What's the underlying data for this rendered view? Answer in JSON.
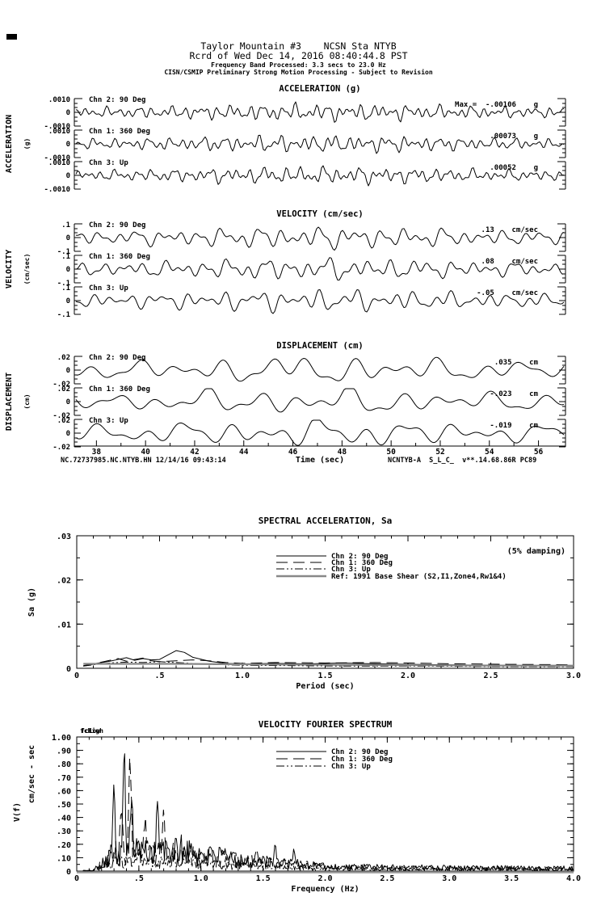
{
  "header": {
    "line1": "Taylor Mountain #3    NCSN Sta NTYB",
    "line2": "Rcrd of Wed Dec 14, 2016 08:40:44.8 PST",
    "line3": "Frequency Band Processed: 3.3 secs to 23.0 Hz",
    "line4": "CISN/CSMIP Preliminary Strong Motion Processing - Subject to Revision"
  },
  "colors": {
    "ink": "#000000",
    "paper": "#ffffff",
    "ref_gray": "#888888",
    "baseline_gray": "#999999"
  },
  "chart_data": [
    {
      "type": "line",
      "panel": "acceleration",
      "title": "ACCELERATION (g)",
      "ylabel": "ACCELERATION",
      "ylabel_units": "(g)",
      "xlim_sec": [
        37,
        57
      ],
      "traces": [
        {
          "label": "Chn 2: 90 Deg",
          "ytick_top": ".0010",
          "ytick_mid": "0",
          "ytick_bot": "-.0010",
          "max_label": "Max =  -.00106    g",
          "max_value": -0.00106,
          "units": "g"
        },
        {
          "label": "Chn 1: 360 Deg",
          "ytick_top": ".0010",
          "ytick_mid": "0",
          "ytick_bot": "-.0010",
          "max_label": ".00073    g",
          "max_value": 0.00073,
          "units": "g"
        },
        {
          "label": "Chn 3: Up",
          "ytick_top": ".0010",
          "ytick_mid": "0",
          "ytick_bot": "-.0010",
          "max_label": ".00052    g",
          "max_value": 0.00052,
          "units": "g"
        }
      ]
    },
    {
      "type": "line",
      "panel": "velocity",
      "title": "VELOCITY (cm/sec)",
      "ylabel": "VELOCITY",
      "ylabel_units": "(cm/sec)",
      "xlim_sec": [
        37,
        57
      ],
      "traces": [
        {
          "label": "Chn 2: 90 Deg",
          "ytick_top": ".1",
          "ytick_mid": "0",
          "ytick_bot": "-.1",
          "max_label": ".13    cm/sec",
          "max_value": 0.13,
          "units": "cm/sec"
        },
        {
          "label": "Chn 1: 360 Deg",
          "ytick_top": ".1",
          "ytick_mid": "0",
          "ytick_bot": "-.1",
          "max_label": ".08    cm/sec",
          "max_value": 0.08,
          "units": "cm/sec"
        },
        {
          "label": "Chn 3: Up",
          "ytick_top": ".1",
          "ytick_mid": "0",
          "ytick_bot": "-.1",
          "max_label": "-.05    cm/sec",
          "max_value": -0.05,
          "units": "cm/sec"
        }
      ]
    },
    {
      "type": "line",
      "panel": "displacement",
      "title": "DISPLACEMENT (cm)",
      "ylabel": "DISPLACEMENT",
      "ylabel_units": "(cm)",
      "xlim_sec": [
        37,
        57
      ],
      "xticks": [
        38,
        40,
        42,
        44,
        46,
        48,
        50,
        52,
        54,
        56
      ],
      "xlabel": "Time (sec)",
      "footer_left": "NC.72737985.NC.NTYB.HN 12/14/16 09:43:14",
      "footer_right": "NCNTYB-A  S_L_C_  v**.14.68.86R PC89",
      "traces": [
        {
          "label": "Chn 2: 90 Deg",
          "ytick_top": ".02",
          "ytick_mid": "0",
          "ytick_bot": "-.02",
          "max_label": ".035    cm",
          "max_value": 0.035,
          "units": "cm"
        },
        {
          "label": "Chn 1: 360 Deg",
          "ytick_top": ".02",
          "ytick_mid": "0",
          "ytick_bot": "-.02",
          "max_label": "-.023    cm",
          "max_value": -0.023,
          "units": "cm"
        },
        {
          "label": "Chn 3: Up",
          "ytick_top": ".02",
          "ytick_mid": "0",
          "ytick_bot": "-.02",
          "max_label": "-.019    cm",
          "max_value": -0.019,
          "units": "cm"
        }
      ]
    },
    {
      "type": "line",
      "panel": "spectral_acceleration",
      "title": "SPECTRAL ACCELERATION, Sa",
      "damping_note": "(5% damping)",
      "xlabel": "Period (sec)",
      "ylabel": "Sa (g)",
      "xlim": [
        0,
        3.0
      ],
      "ylim": [
        0,
        0.03
      ],
      "xtick_labels": [
        "0",
        ".5",
        "1.0",
        "1.5",
        "2.0",
        "2.5",
        "3.0"
      ],
      "xtick_values": [
        0,
        0.5,
        1.0,
        1.5,
        2.0,
        2.5,
        3.0
      ],
      "ytick_labels": [
        "0",
        ".01",
        ".02",
        ".03"
      ],
      "ytick_values": [
        0,
        0.01,
        0.02,
        0.03
      ],
      "legend": [
        {
          "label": "Chn 2: 90 Deg",
          "style": "solid"
        },
        {
          "label": "Chn 1: 360 Deg",
          "style": "long-dash"
        },
        {
          "label": "Chn 3: Up",
          "style": "dash-dot"
        },
        {
          "label": "Ref: 1991 Base Shear (S2,I1,Zone4,Rw1&4)",
          "style": "ref-solid"
        }
      ],
      "series": [
        {
          "name": "Chn 2: 90 Deg",
          "style": "solid",
          "points": [
            [
              0.04,
              0.0006
            ],
            [
              0.1,
              0.001
            ],
            [
              0.15,
              0.0013
            ],
            [
              0.2,
              0.0016
            ],
            [
              0.25,
              0.002
            ],
            [
              0.3,
              0.0024
            ],
            [
              0.35,
              0.0018
            ],
            [
              0.4,
              0.0022
            ],
            [
              0.45,
              0.0019
            ],
            [
              0.5,
              0.002
            ],
            [
              0.55,
              0.003
            ],
            [
              0.6,
              0.004
            ],
            [
              0.65,
              0.0036
            ],
            [
              0.7,
              0.0025
            ],
            [
              0.8,
              0.0016
            ],
            [
              0.9,
              0.0011
            ],
            [
              1.0,
              0.001
            ],
            [
              1.2,
              0.0011
            ],
            [
              1.4,
              0.001
            ],
            [
              1.6,
              0.0012
            ],
            [
              1.8,
              0.001
            ],
            [
              2.0,
              0.0009
            ],
            [
              2.2,
              0.0008
            ],
            [
              2.5,
              0.0007
            ],
            [
              2.8,
              0.0006
            ],
            [
              3.0,
              0.0006
            ]
          ]
        },
        {
          "name": "Chn 1: 360 Deg",
          "style": "long-dash",
          "points": [
            [
              0.04,
              0.0005
            ],
            [
              0.1,
              0.0009
            ],
            [
              0.15,
              0.0014
            ],
            [
              0.2,
              0.0018
            ],
            [
              0.25,
              0.0022
            ],
            [
              0.3,
              0.0016
            ],
            [
              0.35,
              0.002
            ],
            [
              0.4,
              0.0023
            ],
            [
              0.45,
              0.0017
            ],
            [
              0.5,
              0.0015
            ],
            [
              0.6,
              0.0017
            ],
            [
              0.7,
              0.0019
            ],
            [
              0.8,
              0.0017
            ],
            [
              0.9,
              0.0013
            ],
            [
              1.0,
              0.0011
            ],
            [
              1.2,
              0.0013
            ],
            [
              1.5,
              0.0012
            ],
            [
              1.8,
              0.0013
            ],
            [
              2.0,
              0.0012
            ],
            [
              2.3,
              0.001
            ],
            [
              2.6,
              0.0009
            ],
            [
              3.0,
              0.0008
            ]
          ]
        },
        {
          "name": "Chn 3: Up",
          "style": "dash-dot",
          "points": [
            [
              0.04,
              0.0005
            ],
            [
              0.1,
              0.0008
            ],
            [
              0.2,
              0.0012
            ],
            [
              0.3,
              0.0014
            ],
            [
              0.4,
              0.0013
            ],
            [
              0.5,
              0.0015
            ],
            [
              0.6,
              0.0013
            ],
            [
              0.7,
              0.0011
            ],
            [
              0.8,
              0.0009
            ],
            [
              1.0,
              0.0007
            ],
            [
              1.3,
              0.0006
            ],
            [
              1.6,
              0.0005
            ],
            [
              2.0,
              0.0005
            ],
            [
              2.5,
              0.0004
            ],
            [
              3.0,
              0.0004
            ]
          ]
        },
        {
          "name": "Ref: 1991 Base Shear",
          "style": "ref-solid",
          "points": [
            [
              0.04,
              0.001
            ],
            [
              0.3,
              0.001
            ],
            [
              0.6,
              0.001
            ],
            [
              1.0,
              0.0009
            ],
            [
              1.5,
              0.0008
            ],
            [
              2.0,
              0.0007
            ],
            [
              2.5,
              0.0006
            ],
            [
              3.0,
              0.0006
            ]
          ]
        }
      ]
    },
    {
      "type": "line",
      "panel": "velocity_fourier_spectrum",
      "title": "VELOCITY FOURIER SPECTRUM",
      "corner_annotations": [
        "fcLow",
        "fcHigh"
      ],
      "xlabel": "Frequency (Hz)",
      "ylabel": "V(f)",
      "ylabel_units": "cm/sec - sec",
      "xlim": [
        0,
        4.0
      ],
      "ylim": [
        0,
        1.0
      ],
      "xtick_labels": [
        "0",
        ".5",
        "1.0",
        "1.5",
        "2.0",
        "2.5",
        "3.0",
        "3.5",
        "4.0"
      ],
      "xtick_values": [
        0,
        0.5,
        1.0,
        1.5,
        2.0,
        2.5,
        3.0,
        3.5,
        4.0
      ],
      "ytick_labels": [
        "0",
        ".10",
        ".20",
        ".30",
        ".40",
        ".50",
        ".60",
        ".70",
        ".80",
        ".90",
        "1.00"
      ],
      "ytick_values": [
        0,
        0.1,
        0.2,
        0.3,
        0.4,
        0.5,
        0.6,
        0.7,
        0.8,
        0.9,
        1.0
      ],
      "legend": [
        {
          "label": "Chn 2: 90 Deg",
          "style": "solid"
        },
        {
          "label": "Chn 1: 360 Deg",
          "style": "long-dash"
        },
        {
          "label": "Chn 3: Up",
          "style": "dash-dot"
        }
      ],
      "peak": {
        "at_frequency_hz": 0.38,
        "max_amplitude": 0.8,
        "series": "Chn 2: 90 Deg"
      },
      "series": [
        {
          "name": "Chn 2: 90 Deg",
          "style": "solid",
          "seed": 101,
          "scale": 1.0,
          "spikes": [
            [
              0.38,
              0.78
            ],
            [
              0.3,
              0.42
            ],
            [
              0.44,
              0.4
            ],
            [
              0.65,
              0.34
            ],
            [
              1.6,
              0.12
            ],
            [
              1.75,
              0.12
            ]
          ]
        },
        {
          "name": "Chn 1: 360 Deg",
          "style": "long-dash",
          "seed": 202,
          "scale": 0.9,
          "spikes": [
            [
              0.43,
              0.7
            ],
            [
              0.36,
              0.28
            ],
            [
              0.55,
              0.22
            ],
            [
              0.7,
              0.24
            ],
            [
              1.45,
              0.08
            ]
          ]
        },
        {
          "name": "Chn 3: Up",
          "style": "dash-dot",
          "seed": 303,
          "scale": 0.45,
          "spikes": [
            [
              0.5,
              0.06
            ],
            [
              0.9,
              0.04
            ]
          ]
        }
      ]
    }
  ]
}
